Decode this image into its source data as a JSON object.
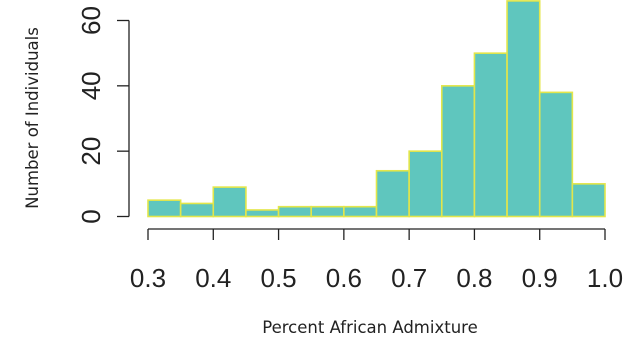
{
  "chart_data": {
    "type": "bar",
    "title": "",
    "xlabel": "Percent African Admixture",
    "ylabel": "Number of Individuals",
    "bin_edges": [
      0.3,
      0.35,
      0.4,
      0.45,
      0.5,
      0.55,
      0.6,
      0.65,
      0.7,
      0.75,
      0.8,
      0.85,
      0.9,
      0.95,
      1.0
    ],
    "values": [
      5,
      4,
      9,
      2,
      3,
      3,
      3,
      14,
      20,
      40,
      50,
      66,
      38,
      10
    ],
    "xlim": [
      0.3,
      1.0
    ],
    "ylim": [
      0,
      60
    ],
    "x_ticks": [
      0.3,
      0.4,
      0.5,
      0.6,
      0.7,
      0.8,
      0.9,
      1.0
    ],
    "x_tick_labels": [
      "0.3",
      "0.4",
      "0.5",
      "0.6",
      "0.7",
      "0.8",
      "0.9",
      "1.0"
    ],
    "y_ticks": [
      0,
      20,
      40,
      60
    ],
    "y_tick_labels": [
      "0",
      "20",
      "40",
      "60"
    ],
    "grid": false,
    "legend": "none",
    "colors": {
      "bar_fill": "#5FC6BE",
      "bar_stroke": "#E3E64A",
      "axis": "#222222",
      "text": "#222222"
    }
  }
}
